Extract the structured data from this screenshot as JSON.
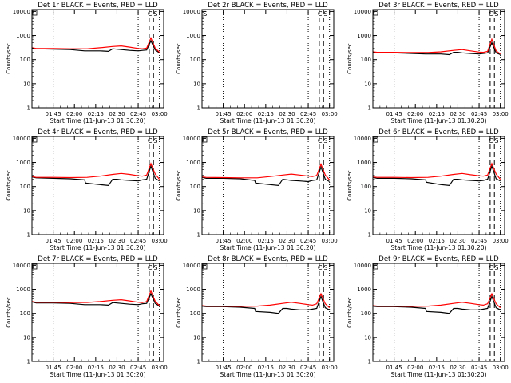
{
  "figure": {
    "ylabel": "Counts/sec",
    "xlabel": "Start Time (11-Jun-13 01:30:20)",
    "xtick_labels": [
      "01:45",
      "02:00",
      "02:15",
      "02:30",
      "02:45",
      "03:00"
    ],
    "ytick_labels": [
      "1",
      "10",
      "100",
      "1000",
      "10000"
    ]
  },
  "colors": {
    "events": "#000000",
    "lld": "#ff0000"
  },
  "chart_data": [
    {
      "type": "line",
      "title": "Det 1r BLACK = Events, RED = LLD",
      "xlim": [
        0,
        1.55
      ],
      "ylim": [
        1,
        12000
      ],
      "yscale": "log",
      "marker_labels": [
        "C",
        "S"
      ],
      "dotted_lines": [
        0.25,
        1.25,
        1.5
      ],
      "dashed_lines": [
        1.38,
        1.43
      ],
      "series": [
        {
          "name": "Events",
          "x": [
            0,
            0.05,
            0.25,
            0.45,
            0.62,
            0.63,
            0.8,
            0.9,
            0.95,
            1.0,
            1.05,
            1.15,
            1.25,
            1.3,
            1.35,
            1.4,
            1.45,
            1.5
          ],
          "y": [
            300,
            280,
            270,
            260,
            230,
            230,
            230,
            220,
            280,
            270,
            260,
            240,
            230,
            240,
            250,
            600,
            250,
            190
          ]
        },
        {
          "name": "LLD",
          "x": [
            0,
            0.05,
            0.25,
            0.45,
            0.65,
            0.8,
            0.95,
            1.05,
            1.15,
            1.25,
            1.3,
            1.35,
            1.4,
            1.45,
            1.5
          ],
          "y": [
            310,
            290,
            290,
            280,
            280,
            310,
            350,
            370,
            330,
            290,
            280,
            300,
            800,
            300,
            200
          ]
        }
      ]
    },
    {
      "type": "line",
      "title": "Det 2r BLACK = Events, RED = LLD",
      "xlim": [
        0,
        1.55
      ],
      "ylim": [
        1,
        12000
      ],
      "yscale": "log",
      "marker_labels": [
        "S",
        "C",
        "S"
      ],
      "dotted_lines": [
        0.25,
        1.25,
        1.5
      ],
      "dashed_lines": [
        1.38,
        1.43
      ],
      "series": []
    },
    {
      "type": "line",
      "title": "Det 3r BLACK = Events, RED = LLD",
      "xlim": [
        0,
        1.55
      ],
      "ylim": [
        1,
        12000
      ],
      "yscale": "log",
      "marker_labels": [
        "C",
        "S"
      ],
      "dotted_lines": [
        0.25,
        1.25,
        1.5
      ],
      "dashed_lines": [
        1.38,
        1.43
      ],
      "series": [
        {
          "name": "Events",
          "x": [
            0,
            0.05,
            0.25,
            0.45,
            0.62,
            0.63,
            0.8,
            0.9,
            0.95,
            1.0,
            1.05,
            1.15,
            1.25,
            1.3,
            1.35,
            1.4,
            1.45,
            1.5
          ],
          "y": [
            200,
            190,
            190,
            180,
            170,
            170,
            170,
            160,
            200,
            200,
            190,
            180,
            170,
            180,
            190,
            500,
            190,
            160
          ]
        },
        {
          "name": "LLD",
          "x": [
            0,
            0.05,
            0.25,
            0.45,
            0.65,
            0.8,
            0.95,
            1.05,
            1.15,
            1.25,
            1.3,
            1.35,
            1.4,
            1.45,
            1.5
          ],
          "y": [
            210,
            200,
            200,
            195,
            195,
            210,
            240,
            260,
            230,
            205,
            200,
            220,
            700,
            230,
            170
          ]
        }
      ]
    },
    {
      "type": "line",
      "title": "Det 4r BLACK = Events, RED = LLD",
      "xlim": [
        0,
        1.55
      ],
      "ylim": [
        1,
        12000
      ],
      "yscale": "log",
      "marker_labels": [
        "C",
        "S"
      ],
      "dotted_lines": [
        0.25,
        1.25,
        1.5
      ],
      "dashed_lines": [
        1.38,
        1.43
      ],
      "series": [
        {
          "name": "Events",
          "x": [
            0,
            0.05,
            0.25,
            0.45,
            0.62,
            0.63,
            0.8,
            0.9,
            0.95,
            1.0,
            1.05,
            1.15,
            1.25,
            1.3,
            1.35,
            1.4,
            1.45,
            1.5
          ],
          "y": [
            250,
            230,
            220,
            210,
            190,
            140,
            120,
            110,
            200,
            200,
            190,
            180,
            170,
            190,
            200,
            700,
            220,
            170
          ]
        },
        {
          "name": "LLD",
          "x": [
            0,
            0.05,
            0.25,
            0.45,
            0.65,
            0.8,
            0.95,
            1.05,
            1.15,
            1.25,
            1.3,
            1.35,
            1.4,
            1.45,
            1.5
          ],
          "y": [
            260,
            240,
            240,
            235,
            240,
            270,
            320,
            350,
            320,
            280,
            270,
            300,
            900,
            330,
            200
          ]
        }
      ]
    },
    {
      "type": "line",
      "title": "Det 5r BLACK = Events, RED = LLD",
      "xlim": [
        0,
        1.55
      ],
      "ylim": [
        1,
        12000
      ],
      "yscale": "log",
      "marker_labels": [
        "C",
        "S"
      ],
      "dotted_lines": [
        0.25,
        1.25,
        1.5
      ],
      "dashed_lines": [
        1.38,
        1.43
      ],
      "series": [
        {
          "name": "Events",
          "x": [
            0,
            0.05,
            0.25,
            0.45,
            0.62,
            0.63,
            0.8,
            0.9,
            0.95,
            1.0,
            1.05,
            1.15,
            1.25,
            1.3,
            1.35,
            1.4,
            1.45,
            1.5
          ],
          "y": [
            240,
            220,
            220,
            210,
            180,
            140,
            120,
            110,
            200,
            190,
            180,
            170,
            160,
            180,
            190,
            650,
            200,
            160
          ]
        },
        {
          "name": "LLD",
          "x": [
            0,
            0.05,
            0.25,
            0.45,
            0.65,
            0.8,
            0.95,
            1.05,
            1.15,
            1.25,
            1.3,
            1.35,
            1.4,
            1.45,
            1.5
          ],
          "y": [
            250,
            240,
            235,
            230,
            230,
            260,
            300,
            330,
            300,
            270,
            260,
            290,
            850,
            300,
            190
          ]
        }
      ]
    },
    {
      "type": "line",
      "title": "Det 6r BLACK = Events, RED = LLD",
      "xlim": [
        0,
        1.55
      ],
      "ylim": [
        1,
        12000
      ],
      "yscale": "log",
      "marker_labels": [
        "C",
        "S"
      ],
      "dotted_lines": [
        0.25,
        1.25,
        1.5
      ],
      "dashed_lines": [
        1.38,
        1.43
      ],
      "series": [
        {
          "name": "Events",
          "x": [
            0,
            0.05,
            0.25,
            0.45,
            0.62,
            0.63,
            0.8,
            0.9,
            0.95,
            1.0,
            1.05,
            1.15,
            1.25,
            1.3,
            1.35,
            1.4,
            1.45,
            1.5
          ],
          "y": [
            240,
            220,
            220,
            210,
            190,
            150,
            120,
            110,
            200,
            200,
            190,
            180,
            170,
            180,
            200,
            700,
            210,
            170
          ]
        },
        {
          "name": "LLD",
          "x": [
            0,
            0.05,
            0.25,
            0.45,
            0.65,
            0.8,
            0.95,
            1.05,
            1.15,
            1.25,
            1.3,
            1.35,
            1.4,
            1.45,
            1.5
          ],
          "y": [
            250,
            240,
            240,
            235,
            240,
            270,
            320,
            350,
            310,
            280,
            270,
            300,
            900,
            330,
            200
          ]
        }
      ]
    },
    {
      "type": "line",
      "title": "Det 7r BLACK = Events, RED = LLD",
      "xlim": [
        0,
        1.55
      ],
      "ylim": [
        1,
        12000
      ],
      "yscale": "log",
      "marker_labels": [
        "C",
        "S"
      ],
      "dotted_lines": [
        0.25,
        1.25,
        1.5
      ],
      "dashed_lines": [
        1.38,
        1.43
      ],
      "series": [
        {
          "name": "Events",
          "x": [
            0,
            0.05,
            0.25,
            0.45,
            0.62,
            0.63,
            0.8,
            0.9,
            0.95,
            1.0,
            1.05,
            1.15,
            1.25,
            1.3,
            1.35,
            1.4,
            1.45,
            1.5
          ],
          "y": [
            300,
            270,
            270,
            260,
            230,
            230,
            230,
            220,
            280,
            270,
            260,
            240,
            230,
            250,
            260,
            650,
            260,
            200
          ]
        },
        {
          "name": "LLD",
          "x": [
            0,
            0.05,
            0.25,
            0.45,
            0.65,
            0.8,
            0.95,
            1.05,
            1.15,
            1.25,
            1.3,
            1.35,
            1.4,
            1.45,
            1.5
          ],
          "y": [
            310,
            290,
            290,
            280,
            285,
            310,
            350,
            370,
            330,
            290,
            280,
            310,
            850,
            320,
            210
          ]
        }
      ]
    },
    {
      "type": "line",
      "title": "Det 8r BLACK = Events, RED = LLD",
      "xlim": [
        0,
        1.55
      ],
      "ylim": [
        1,
        12000
      ],
      "yscale": "log",
      "marker_labels": [
        "C",
        "S"
      ],
      "dotted_lines": [
        0.25,
        1.25,
        1.5
      ],
      "dashed_lines": [
        1.38,
        1.43
      ],
      "series": [
        {
          "name": "Events",
          "x": [
            0,
            0.05,
            0.25,
            0.45,
            0.62,
            0.63,
            0.8,
            0.9,
            0.95,
            1.0,
            1.05,
            1.15,
            1.25,
            1.3,
            1.35,
            1.4,
            1.45,
            1.5
          ],
          "y": [
            200,
            190,
            190,
            180,
            160,
            120,
            110,
            100,
            160,
            160,
            150,
            140,
            140,
            150,
            160,
            500,
            170,
            140
          ]
        },
        {
          "name": "LLD",
          "x": [
            0,
            0.05,
            0.25,
            0.45,
            0.65,
            0.8,
            0.95,
            1.05,
            1.15,
            1.25,
            1.3,
            1.35,
            1.4,
            1.45,
            1.5
          ],
          "y": [
            210,
            200,
            200,
            195,
            200,
            220,
            260,
            290,
            260,
            230,
            220,
            250,
            650,
            250,
            170
          ]
        }
      ]
    },
    {
      "type": "line",
      "title": "Det 9r BLACK = Events, RED = LLD",
      "xlim": [
        0,
        1.55
      ],
      "ylim": [
        1,
        12000
      ],
      "yscale": "log",
      "marker_labels": [
        "C",
        "S"
      ],
      "dotted_lines": [
        0.25,
        1.25,
        1.5
      ],
      "dashed_lines": [
        1.38,
        1.43
      ],
      "series": [
        {
          "name": "Events",
          "x": [
            0,
            0.05,
            0.25,
            0.45,
            0.62,
            0.63,
            0.8,
            0.9,
            0.95,
            1.0,
            1.05,
            1.15,
            1.25,
            1.3,
            1.35,
            1.4,
            1.45,
            1.5
          ],
          "y": [
            200,
            190,
            190,
            180,
            160,
            120,
            110,
            100,
            160,
            160,
            150,
            140,
            140,
            150,
            160,
            500,
            170,
            140
          ]
        },
        {
          "name": "LLD",
          "x": [
            0,
            0.05,
            0.25,
            0.45,
            0.65,
            0.8,
            0.95,
            1.05,
            1.15,
            1.25,
            1.3,
            1.35,
            1.4,
            1.45,
            1.5
          ],
          "y": [
            210,
            200,
            200,
            195,
            200,
            220,
            260,
            290,
            260,
            230,
            220,
            250,
            650,
            250,
            170
          ]
        }
      ]
    }
  ]
}
